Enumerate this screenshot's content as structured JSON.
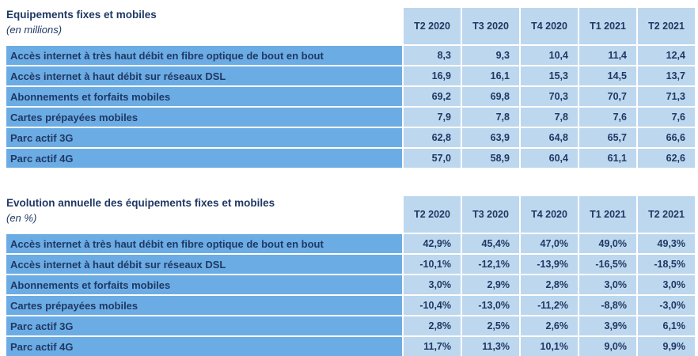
{
  "colors": {
    "label_bg": "#6CACE4",
    "value_bg": "#BDD7EE",
    "text": "#1F3864"
  },
  "tables": [
    {
      "title": "Equipements fixes et mobiles",
      "subtitle": "(en millions)",
      "columns": [
        "T2 2020",
        "T3 2020",
        "T4 2020",
        "T1 2021",
        "T2 2021"
      ],
      "rows": [
        {
          "label": "Accès internet à très haut débit en fibre optique de bout en bout",
          "values": [
            "8,3",
            "9,3",
            "10,4",
            "11,4",
            "12,4"
          ]
        },
        {
          "label": "Accès internet à haut débit sur réseaux DSL",
          "values": [
            "16,9",
            "16,1",
            "15,3",
            "14,5",
            "13,7"
          ]
        },
        {
          "label": "Abonnements et forfaits mobiles",
          "values": [
            "69,2",
            "69,8",
            "70,3",
            "70,7",
            "71,3"
          ]
        },
        {
          "label": "Cartes prépayées mobiles",
          "values": [
            "7,9",
            "7,8",
            "7,8",
            "7,6",
            "7,6"
          ]
        },
        {
          "label": "Parc actif 3G",
          "values": [
            "62,8",
            "63,9",
            "64,8",
            "65,7",
            "66,6"
          ]
        },
        {
          "label": "Parc actif 4G",
          "values": [
            "57,0",
            "58,9",
            "60,4",
            "61,1",
            "62,6"
          ]
        }
      ]
    },
    {
      "title": "Evolution annuelle des équipements fixes et mobiles",
      "subtitle": "(en %)",
      "columns": [
        "T2 2020",
        "T3 2020",
        "T4 2020",
        "T1 2021",
        "T2 2021"
      ],
      "rows": [
        {
          "label": "Accès internet à très haut débit en fibre optique de bout en bout",
          "values": [
            "42,9%",
            "45,4%",
            "47,0%",
            "49,0%",
            "49,3%"
          ]
        },
        {
          "label": "Accès internet à haut débit sur réseaux DSL",
          "values": [
            "-10,1%",
            "-12,1%",
            "-13,9%",
            "-16,5%",
            "-18,5%"
          ]
        },
        {
          "label": "Abonnements et forfaits mobiles",
          "values": [
            "3,0%",
            "2,9%",
            "2,8%",
            "3,0%",
            "3,0%"
          ]
        },
        {
          "label": "Cartes prépayées mobiles",
          "values": [
            "-10,4%",
            "-13,0%",
            "-11,2%",
            "-8,8%",
            "-3,0%"
          ]
        },
        {
          "label": "Parc actif 3G",
          "values": [
            "2,8%",
            "2,5%",
            "2,6%",
            "3,9%",
            "6,1%"
          ]
        },
        {
          "label": "Parc actif 4G",
          "values": [
            "11,7%",
            "11,3%",
            "10,1%",
            "9,0%",
            "9,9%"
          ]
        }
      ]
    }
  ]
}
